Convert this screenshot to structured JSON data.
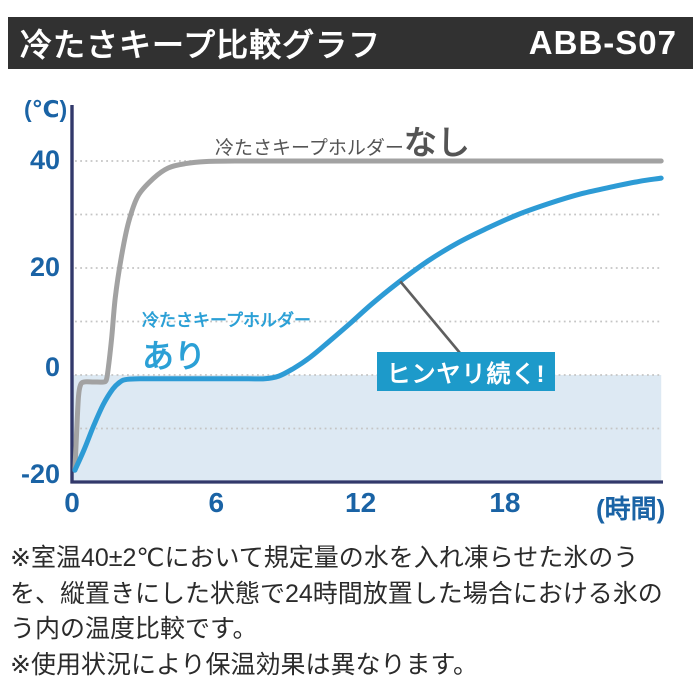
{
  "header": {
    "title": "冷たさキープ比較グラフ",
    "model": "ABB-S07",
    "bg_color": "#313131",
    "text_color": "#ffffff"
  },
  "chart_data": {
    "type": "line",
    "title": "冷たさキープ比較グラフ",
    "x_axis": {
      "tick_labels": [
        "0",
        "6",
        "12",
        "18"
      ],
      "tick_values": [
        0,
        6,
        12,
        18
      ],
      "unit_label": "(時間)",
      "range": [
        0,
        24.6
      ]
    },
    "y_axis": {
      "tick_labels": [
        "40",
        "20",
        "0",
        "-20"
      ],
      "tick_values": [
        40,
        20,
        0,
        -20
      ],
      "unit_label": "(℃)",
      "range": [
        -20,
        50
      ],
      "gridline_values": [
        40,
        30,
        20,
        10,
        0,
        -10
      ]
    },
    "series": [
      {
        "id": "nashi",
        "name": "冷たさキープホルダーなし",
        "label_prefix": "冷たさキープホルダー",
        "label_emphasis": "なし",
        "color": "#a2a2a2",
        "points": [
          [
            0.12,
            -17.8
          ],
          [
            0.2,
            -10
          ],
          [
            0.27,
            -4
          ],
          [
            0.35,
            -1.9
          ],
          [
            0.5,
            -1.3
          ],
          [
            0.9,
            -1.3
          ],
          [
            1.3,
            -1.3
          ],
          [
            1.42,
            -1.0
          ],
          [
            1.5,
            1
          ],
          [
            1.65,
            7
          ],
          [
            1.8,
            14.5
          ],
          [
            2.05,
            22
          ],
          [
            2.35,
            28.5
          ],
          [
            2.75,
            33.5
          ],
          [
            3.4,
            36.8
          ],
          [
            4.0,
            38.7
          ],
          [
            4.7,
            39.5
          ],
          [
            5.6,
            39.9
          ],
          [
            7,
            40
          ],
          [
            10,
            40
          ],
          [
            14,
            40
          ],
          [
            18,
            40
          ],
          [
            22,
            40
          ],
          [
            24.5,
            40
          ]
        ]
      },
      {
        "id": "ari",
        "name": "冷たさキープホルダーあり",
        "label_prefix": "冷たさキープホルダー",
        "label_emphasis": "あり",
        "color": "#2d9bd5",
        "points": [
          [
            0.12,
            -17.8
          ],
          [
            0.5,
            -14
          ],
          [
            0.9,
            -9.5
          ],
          [
            1.3,
            -5.5
          ],
          [
            1.7,
            -2.6
          ],
          [
            2.0,
            -1.3
          ],
          [
            2.3,
            -0.8
          ],
          [
            3,
            -0.7
          ],
          [
            4,
            -0.7
          ],
          [
            5,
            -0.7
          ],
          [
            6,
            -0.7
          ],
          [
            7,
            -0.7
          ],
          [
            8,
            -0.7
          ],
          [
            8.6,
            -0.2
          ],
          [
            9.2,
            1.2
          ],
          [
            9.9,
            3.3
          ],
          [
            10.7,
            6.3
          ],
          [
            11.6,
            9.8
          ],
          [
            12.5,
            13.4
          ],
          [
            13.6,
            17.4
          ],
          [
            14.8,
            21.3
          ],
          [
            16,
            24.6
          ],
          [
            17.2,
            27.3
          ],
          [
            18.5,
            29.9
          ],
          [
            19.8,
            32
          ],
          [
            21.2,
            33.9
          ],
          [
            22.6,
            35.3
          ],
          [
            23.6,
            36.2
          ],
          [
            24.5,
            36.8
          ]
        ]
      }
    ],
    "shaded_region": {
      "from": -20,
      "to": 0,
      "color": "#dde9f3"
    },
    "annotation": {
      "text": "ヒンヤリ続く!",
      "box_color": "#1d9aca",
      "text_color": "#ffffff",
      "anchor": {
        "t": 13.65,
        "temp": 17.5
      }
    },
    "colors": {
      "axis": "#32396b",
      "gridline": "#c5c5c5",
      "tick_label": "#1a63a5",
      "series_label_nashi": "#545454",
      "series_label_ari": "#2ba0d6",
      "callout_line": "#5f5f5f"
    }
  },
  "footnotes": {
    "lines": [
      "※室温40±2℃において規定量の水を入れ凍らせた氷のう",
      "を、縦置きにした状態で24時間放置した場合における氷の",
      "う内の温度比較です。",
      "※使用状況により保温効果は異なります。"
    ]
  }
}
